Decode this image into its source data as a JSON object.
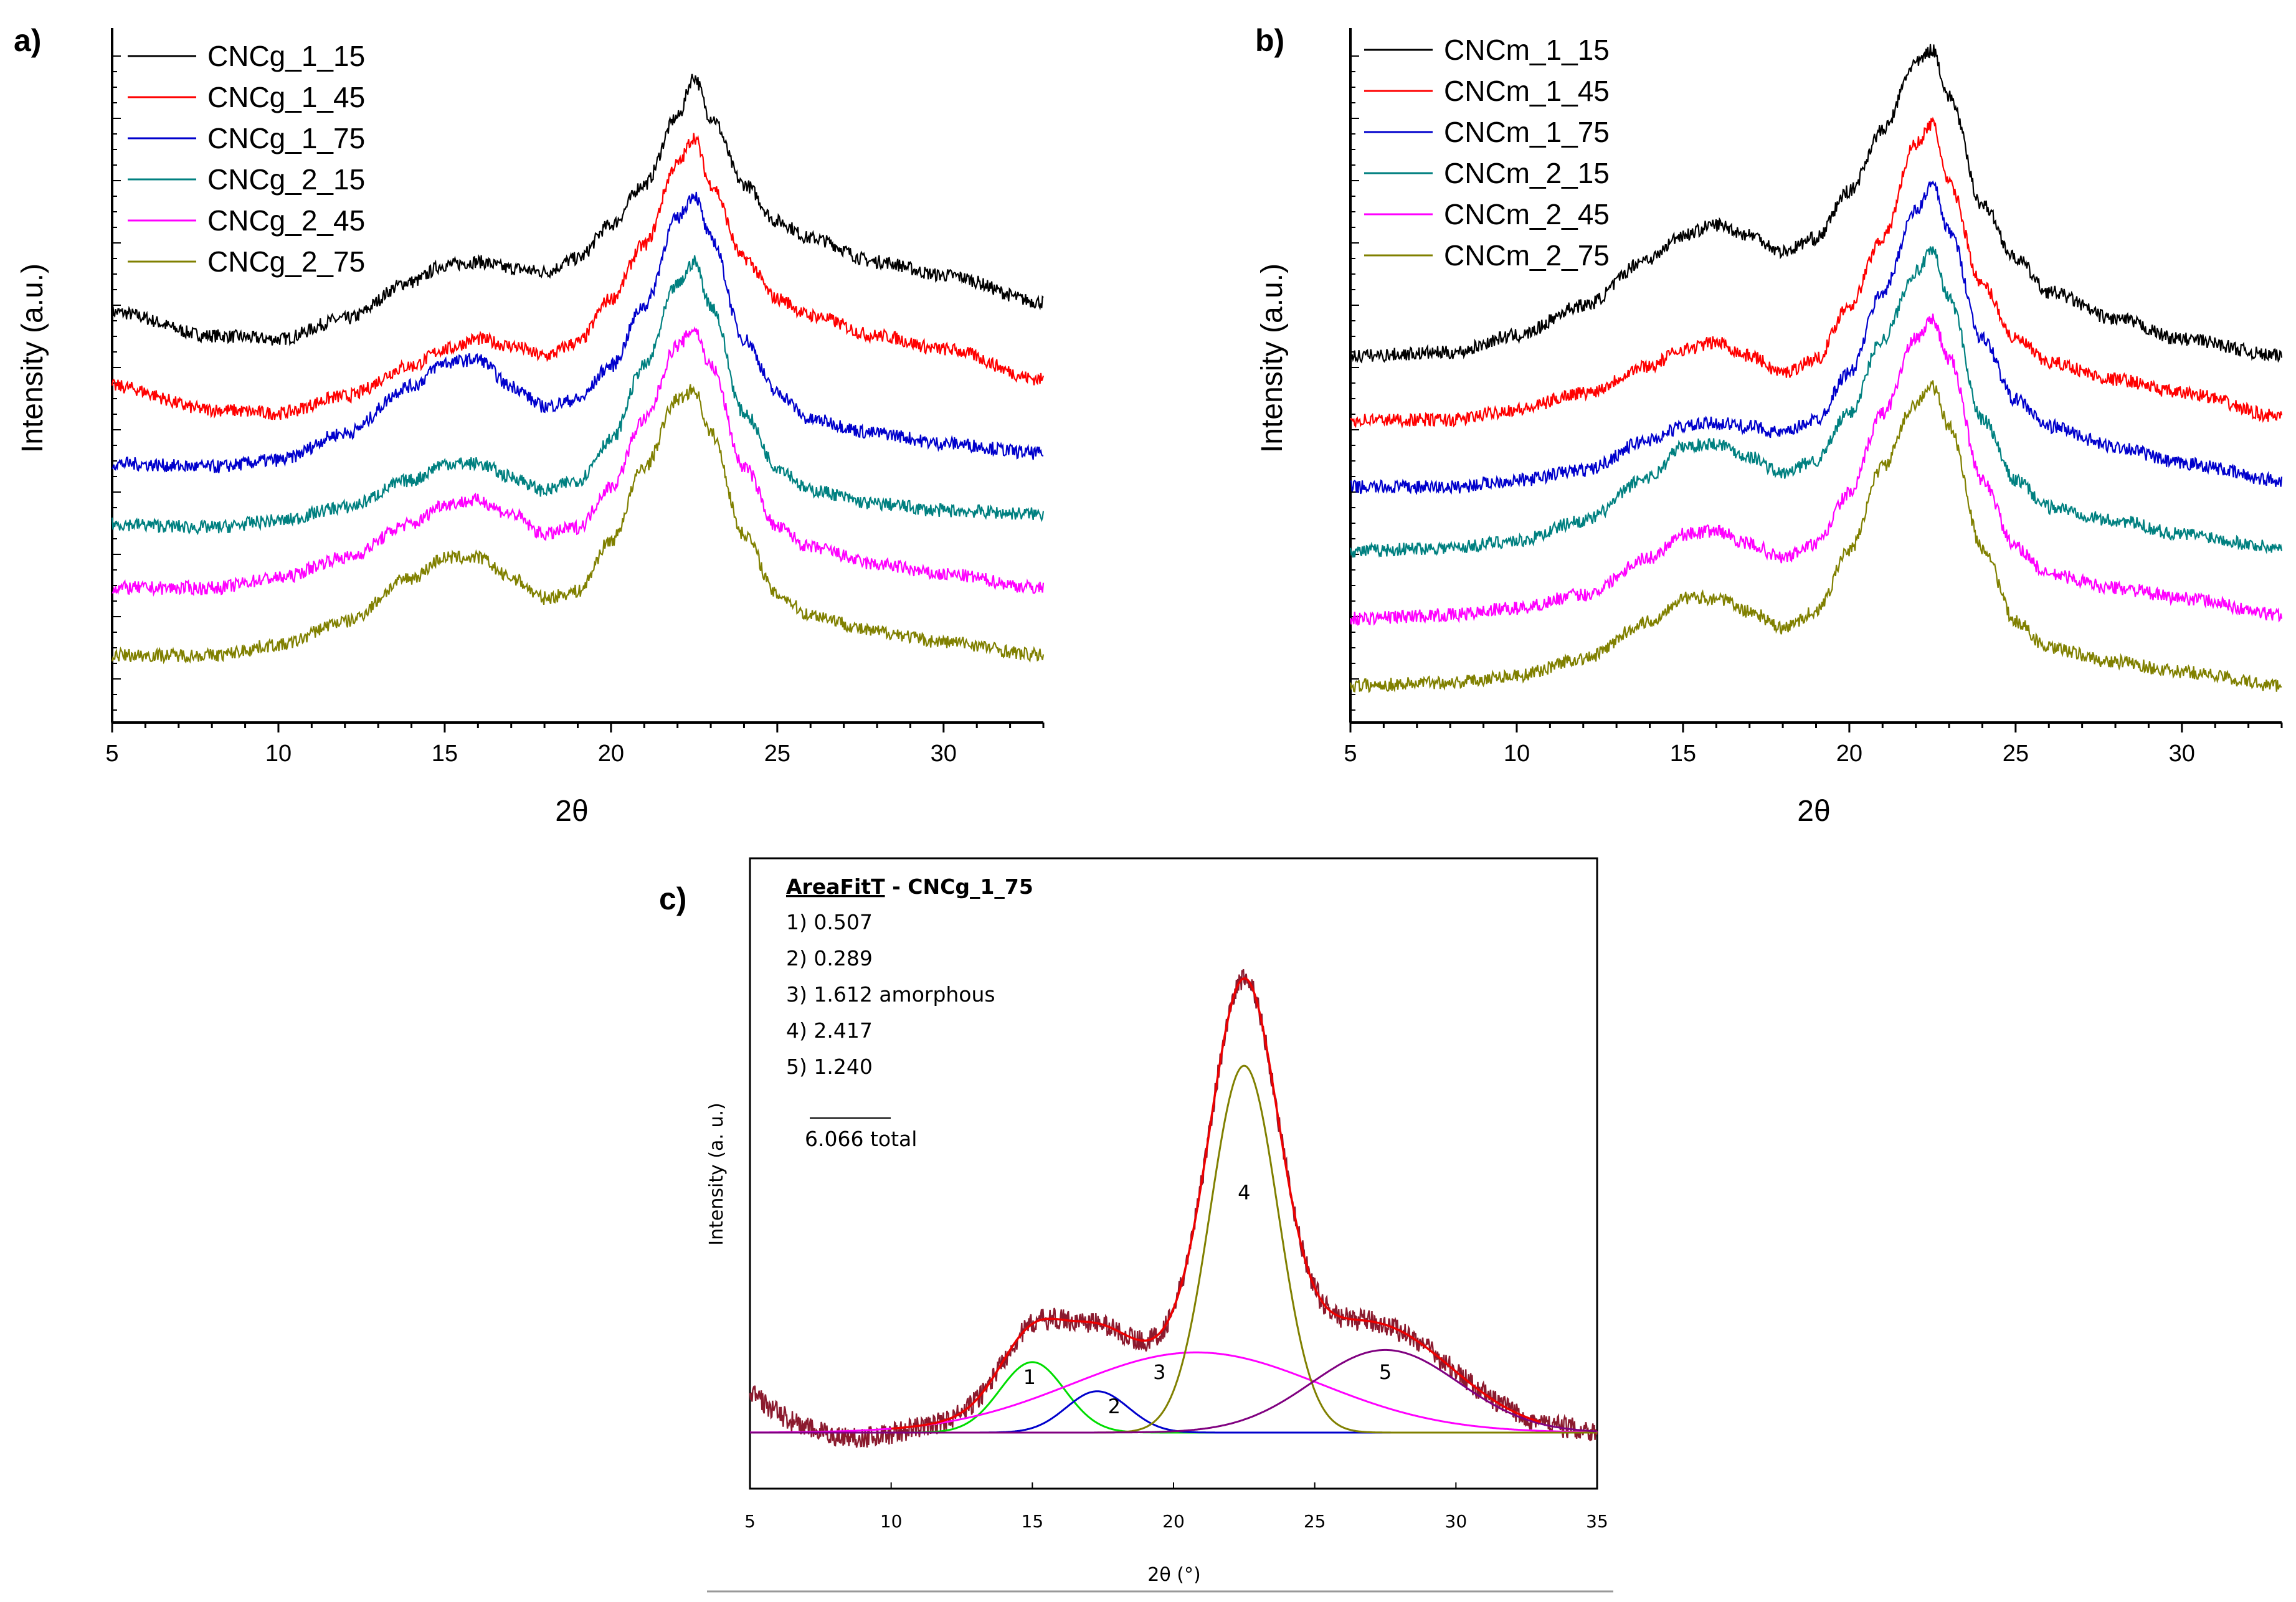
{
  "chart_data": [
    {
      "panel": "a)",
      "type": "line",
      "xlabel": "2θ",
      "ylabel": "Intensity (a.u.)",
      "xlim": [
        5,
        33
      ],
      "xticks": [
        5,
        10,
        15,
        20,
        25,
        30
      ],
      "legend_position": "top-left",
      "series": [
        {
          "name": "CNCg_1_15",
          "color": "#000000",
          "x": [
            5,
            8,
            10,
            12,
            14,
            15,
            16,
            17,
            18,
            19,
            20,
            21,
            22,
            22.5,
            23,
            24,
            25,
            26,
            28,
            30,
            33
          ],
          "y": [
            0.61,
            0.575,
            0.57,
            0.6,
            0.655,
            0.68,
            0.685,
            0.675,
            0.67,
            0.69,
            0.74,
            0.8,
            0.9,
            0.96,
            0.9,
            0.8,
            0.745,
            0.72,
            0.685,
            0.665,
            0.625
          ]
        },
        {
          "name": "CNCg_1_45",
          "color": "#ff0000",
          "x": [
            5,
            8,
            10,
            12,
            14,
            15,
            16,
            17,
            18,
            19,
            20,
            21,
            22,
            22.5,
            23,
            24,
            25,
            26,
            28,
            30,
            33
          ],
          "y": [
            0.5,
            0.465,
            0.46,
            0.485,
            0.53,
            0.555,
            0.57,
            0.56,
            0.545,
            0.565,
            0.63,
            0.71,
            0.83,
            0.87,
            0.8,
            0.69,
            0.63,
            0.605,
            0.575,
            0.555,
            0.51
          ]
        },
        {
          "name": "CNCg_1_75",
          "color": "#0000cc",
          "x": [
            5,
            8,
            10,
            12,
            14,
            15,
            16,
            17,
            18,
            19,
            20,
            21,
            22,
            22.5,
            23,
            24,
            25,
            26,
            28,
            30,
            33
          ],
          "y": [
            0.385,
            0.38,
            0.39,
            0.43,
            0.5,
            0.535,
            0.54,
            0.5,
            0.47,
            0.48,
            0.53,
            0.62,
            0.75,
            0.785,
            0.72,
            0.57,
            0.49,
            0.45,
            0.43,
            0.415,
            0.4
          ]
        },
        {
          "name": "CNCg_2_15",
          "color": "#008080",
          "x": [
            5,
            8,
            10,
            12,
            14,
            15,
            16,
            17,
            18,
            19,
            20,
            21,
            22,
            22.5,
            23,
            24,
            25,
            26,
            28,
            30,
            33
          ],
          "y": [
            0.295,
            0.29,
            0.3,
            0.32,
            0.36,
            0.385,
            0.385,
            0.365,
            0.345,
            0.36,
            0.42,
            0.53,
            0.65,
            0.685,
            0.62,
            0.46,
            0.38,
            0.345,
            0.325,
            0.315,
            0.31
          ]
        },
        {
          "name": "CNCg_2_45",
          "color": "#ff00ff",
          "x": [
            5,
            8,
            10,
            12,
            14,
            15,
            16,
            17,
            18,
            19,
            20,
            21,
            22,
            22.5,
            23,
            24,
            25,
            26,
            28,
            30,
            33
          ],
          "y": [
            0.2,
            0.2,
            0.215,
            0.245,
            0.295,
            0.325,
            0.33,
            0.31,
            0.28,
            0.29,
            0.35,
            0.45,
            0.56,
            0.585,
            0.53,
            0.38,
            0.29,
            0.26,
            0.235,
            0.22,
            0.2
          ]
        },
        {
          "name": "CNCg_2_75",
          "color": "#808000",
          "x": [
            5,
            8,
            10,
            12,
            14,
            15,
            16,
            17,
            18,
            19,
            20,
            21,
            22,
            22.5,
            23,
            24,
            25,
            26,
            28,
            30,
            33
          ],
          "y": [
            0.1,
            0.1,
            0.115,
            0.15,
            0.215,
            0.245,
            0.245,
            0.215,
            0.185,
            0.195,
            0.27,
            0.38,
            0.48,
            0.495,
            0.43,
            0.28,
            0.19,
            0.16,
            0.135,
            0.12,
            0.1
          ]
        }
      ]
    },
    {
      "panel": "b)",
      "type": "line",
      "xlabel": "2θ",
      "ylabel": "Intensity (a.u.)",
      "xlim": [
        5,
        33
      ],
      "xticks": [
        5,
        10,
        15,
        20,
        25,
        30
      ],
      "legend_position": "top-left",
      "series": [
        {
          "name": "CNCm_1_15",
          "color": "#000000",
          "x": [
            5,
            8,
            10,
            12,
            14,
            15,
            16,
            17,
            18,
            19,
            20,
            21,
            22,
            22.5,
            23,
            24,
            25,
            26,
            28,
            30,
            33
          ],
          "y": [
            0.545,
            0.55,
            0.575,
            0.62,
            0.69,
            0.725,
            0.74,
            0.725,
            0.7,
            0.72,
            0.79,
            0.88,
            0.98,
            1.0,
            0.93,
            0.77,
            0.69,
            0.64,
            0.6,
            0.57,
            0.545
          ]
        },
        {
          "name": "CNCm_1_45",
          "color": "#ff0000",
          "x": [
            5,
            8,
            10,
            12,
            14,
            15,
            16,
            17,
            18,
            19,
            20,
            21,
            22,
            22.5,
            23,
            24,
            25,
            26,
            28,
            30,
            33
          ],
          "y": [
            0.45,
            0.45,
            0.465,
            0.49,
            0.53,
            0.555,
            0.565,
            0.545,
            0.52,
            0.54,
            0.62,
            0.72,
            0.86,
            0.89,
            0.8,
            0.65,
            0.57,
            0.535,
            0.51,
            0.49,
            0.455
          ]
        },
        {
          "name": "CNCm_1_75",
          "color": "#0000cc",
          "x": [
            5,
            8,
            10,
            12,
            14,
            15,
            16,
            17,
            18,
            19,
            20,
            21,
            22,
            22.5,
            23,
            24,
            25,
            26,
            28,
            30,
            33
          ],
          "y": [
            0.35,
            0.35,
            0.36,
            0.375,
            0.42,
            0.44,
            0.445,
            0.44,
            0.43,
            0.45,
            0.52,
            0.64,
            0.76,
            0.8,
            0.73,
            0.57,
            0.48,
            0.44,
            0.41,
            0.385,
            0.36
          ]
        },
        {
          "name": "CNCm_2_15",
          "color": "#008080",
          "x": [
            5,
            8,
            10,
            12,
            14,
            15,
            16,
            17,
            18,
            19,
            20,
            21,
            22,
            22.5,
            23,
            24,
            25,
            26,
            28,
            30,
            33
          ],
          "y": [
            0.255,
            0.26,
            0.27,
            0.3,
            0.365,
            0.41,
            0.415,
            0.395,
            0.37,
            0.39,
            0.46,
            0.57,
            0.67,
            0.7,
            0.63,
            0.45,
            0.36,
            0.32,
            0.3,
            0.28,
            0.26
          ]
        },
        {
          "name": "CNCm_2_45",
          "color": "#ff00ff",
          "x": [
            5,
            8,
            10,
            12,
            14,
            15,
            16,
            17,
            18,
            19,
            20,
            21,
            22,
            22.5,
            23,
            24,
            25,
            26,
            28,
            30,
            33
          ],
          "y": [
            0.155,
            0.16,
            0.17,
            0.19,
            0.245,
            0.28,
            0.285,
            0.265,
            0.245,
            0.265,
            0.34,
            0.46,
            0.57,
            0.6,
            0.54,
            0.36,
            0.26,
            0.22,
            0.2,
            0.185,
            0.16
          ]
        },
        {
          "name": "CNCm_2_75",
          "color": "#808000",
          "x": [
            5,
            8,
            10,
            12,
            14,
            15,
            16,
            17,
            18,
            19,
            20,
            21,
            22,
            22.5,
            23,
            24,
            25,
            26,
            28,
            30,
            33
          ],
          "y": [
            0.055,
            0.06,
            0.07,
            0.095,
            0.15,
            0.185,
            0.185,
            0.165,
            0.14,
            0.165,
            0.255,
            0.38,
            0.475,
            0.5,
            0.44,
            0.26,
            0.15,
            0.11,
            0.09,
            0.075,
            0.055
          ]
        }
      ]
    },
    {
      "panel": "c)",
      "type": "line",
      "xlabel": "2θ (°)",
      "ylabel": "Intensity (a. u.)",
      "xlim": [
        5,
        35
      ],
      "xticks": [
        5,
        10,
        15,
        20,
        25,
        30,
        35
      ],
      "title_underlined": "AreaFitT",
      "title_rest": " - CNCg_1_75",
      "fit_areas": [
        "1) 0.507",
        "2) 0.289",
        "3) 1.612 amorphous",
        "4) 2.417",
        "5) 1.240"
      ],
      "total_label": "6.066 total",
      "peaks": [
        {
          "label": "1",
          "center": 15.0,
          "height": 0.145,
          "width": 1.15,
          "color": "#00dd00"
        },
        {
          "label": "2",
          "center": 17.3,
          "height": 0.085,
          "width": 1.1,
          "color": "#0000cc"
        },
        {
          "label": "3",
          "center": 20.8,
          "height": 0.165,
          "width": 4.4,
          "color": "#ff00ff"
        },
        {
          "label": "4",
          "center": 22.5,
          "height": 0.755,
          "width": 1.2,
          "color": "#808000"
        },
        {
          "label": "5",
          "center": 27.5,
          "height": 0.17,
          "width": 2.6,
          "color": "#800080"
        }
      ],
      "fit_color": "#ee0000",
      "raw_color": "#8b1a2e",
      "peak_label_positions": [
        {
          "label": "1",
          "x": 14.9,
          "y": 0.1
        },
        {
          "label": "2",
          "x": 17.9,
          "y": 0.04
        },
        {
          "label": "3",
          "x": 19.5,
          "y": 0.11
        },
        {
          "label": "4",
          "x": 22.5,
          "y": 0.48
        },
        {
          "label": "5",
          "x": 27.5,
          "y": 0.11
        }
      ]
    }
  ]
}
